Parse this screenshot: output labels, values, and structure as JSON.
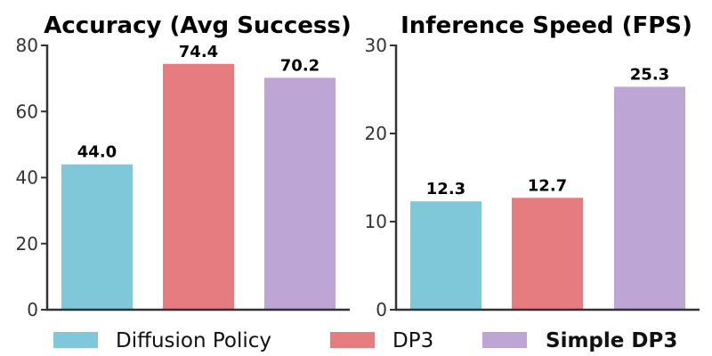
{
  "chart_data": [
    {
      "type": "bar",
      "title": "Accuracy (Avg Success)",
      "categories": [
        "Diffusion Policy",
        "DP3",
        "Simple DP3"
      ],
      "values": [
        44.0,
        74.4,
        70.2
      ],
      "value_labels": [
        "44.0",
        "74.4",
        "70.2"
      ],
      "ylim": [
        0,
        80
      ],
      "yticks": [
        0,
        20,
        40,
        60,
        80
      ],
      "ytick_labels": [
        "0",
        "20",
        "40",
        "60",
        "80"
      ],
      "grid": false
    },
    {
      "type": "bar",
      "title": "Inference Speed (FPS)",
      "categories": [
        "Diffusion Policy",
        "DP3",
        "Simple DP3"
      ],
      "values": [
        12.3,
        12.7,
        25.3
      ],
      "value_labels": [
        "12.3",
        "12.7",
        "25.3"
      ],
      "ylim": [
        0,
        30
      ],
      "yticks": [
        0,
        10,
        20,
        30
      ],
      "ytick_labels": [
        "0",
        "10",
        "20",
        "30"
      ],
      "grid": false
    }
  ],
  "legend": {
    "placement": "bottom",
    "entries": [
      {
        "label": "Diffusion Policy",
        "color": "#7ec8d9",
        "bold": false
      },
      {
        "label": "DP3",
        "color": "#e67c7f",
        "bold": false
      },
      {
        "label": "Simple DP3",
        "color": "#bda5d6",
        "bold": true
      }
    ]
  },
  "colors": {
    "axis": "#333333"
  }
}
